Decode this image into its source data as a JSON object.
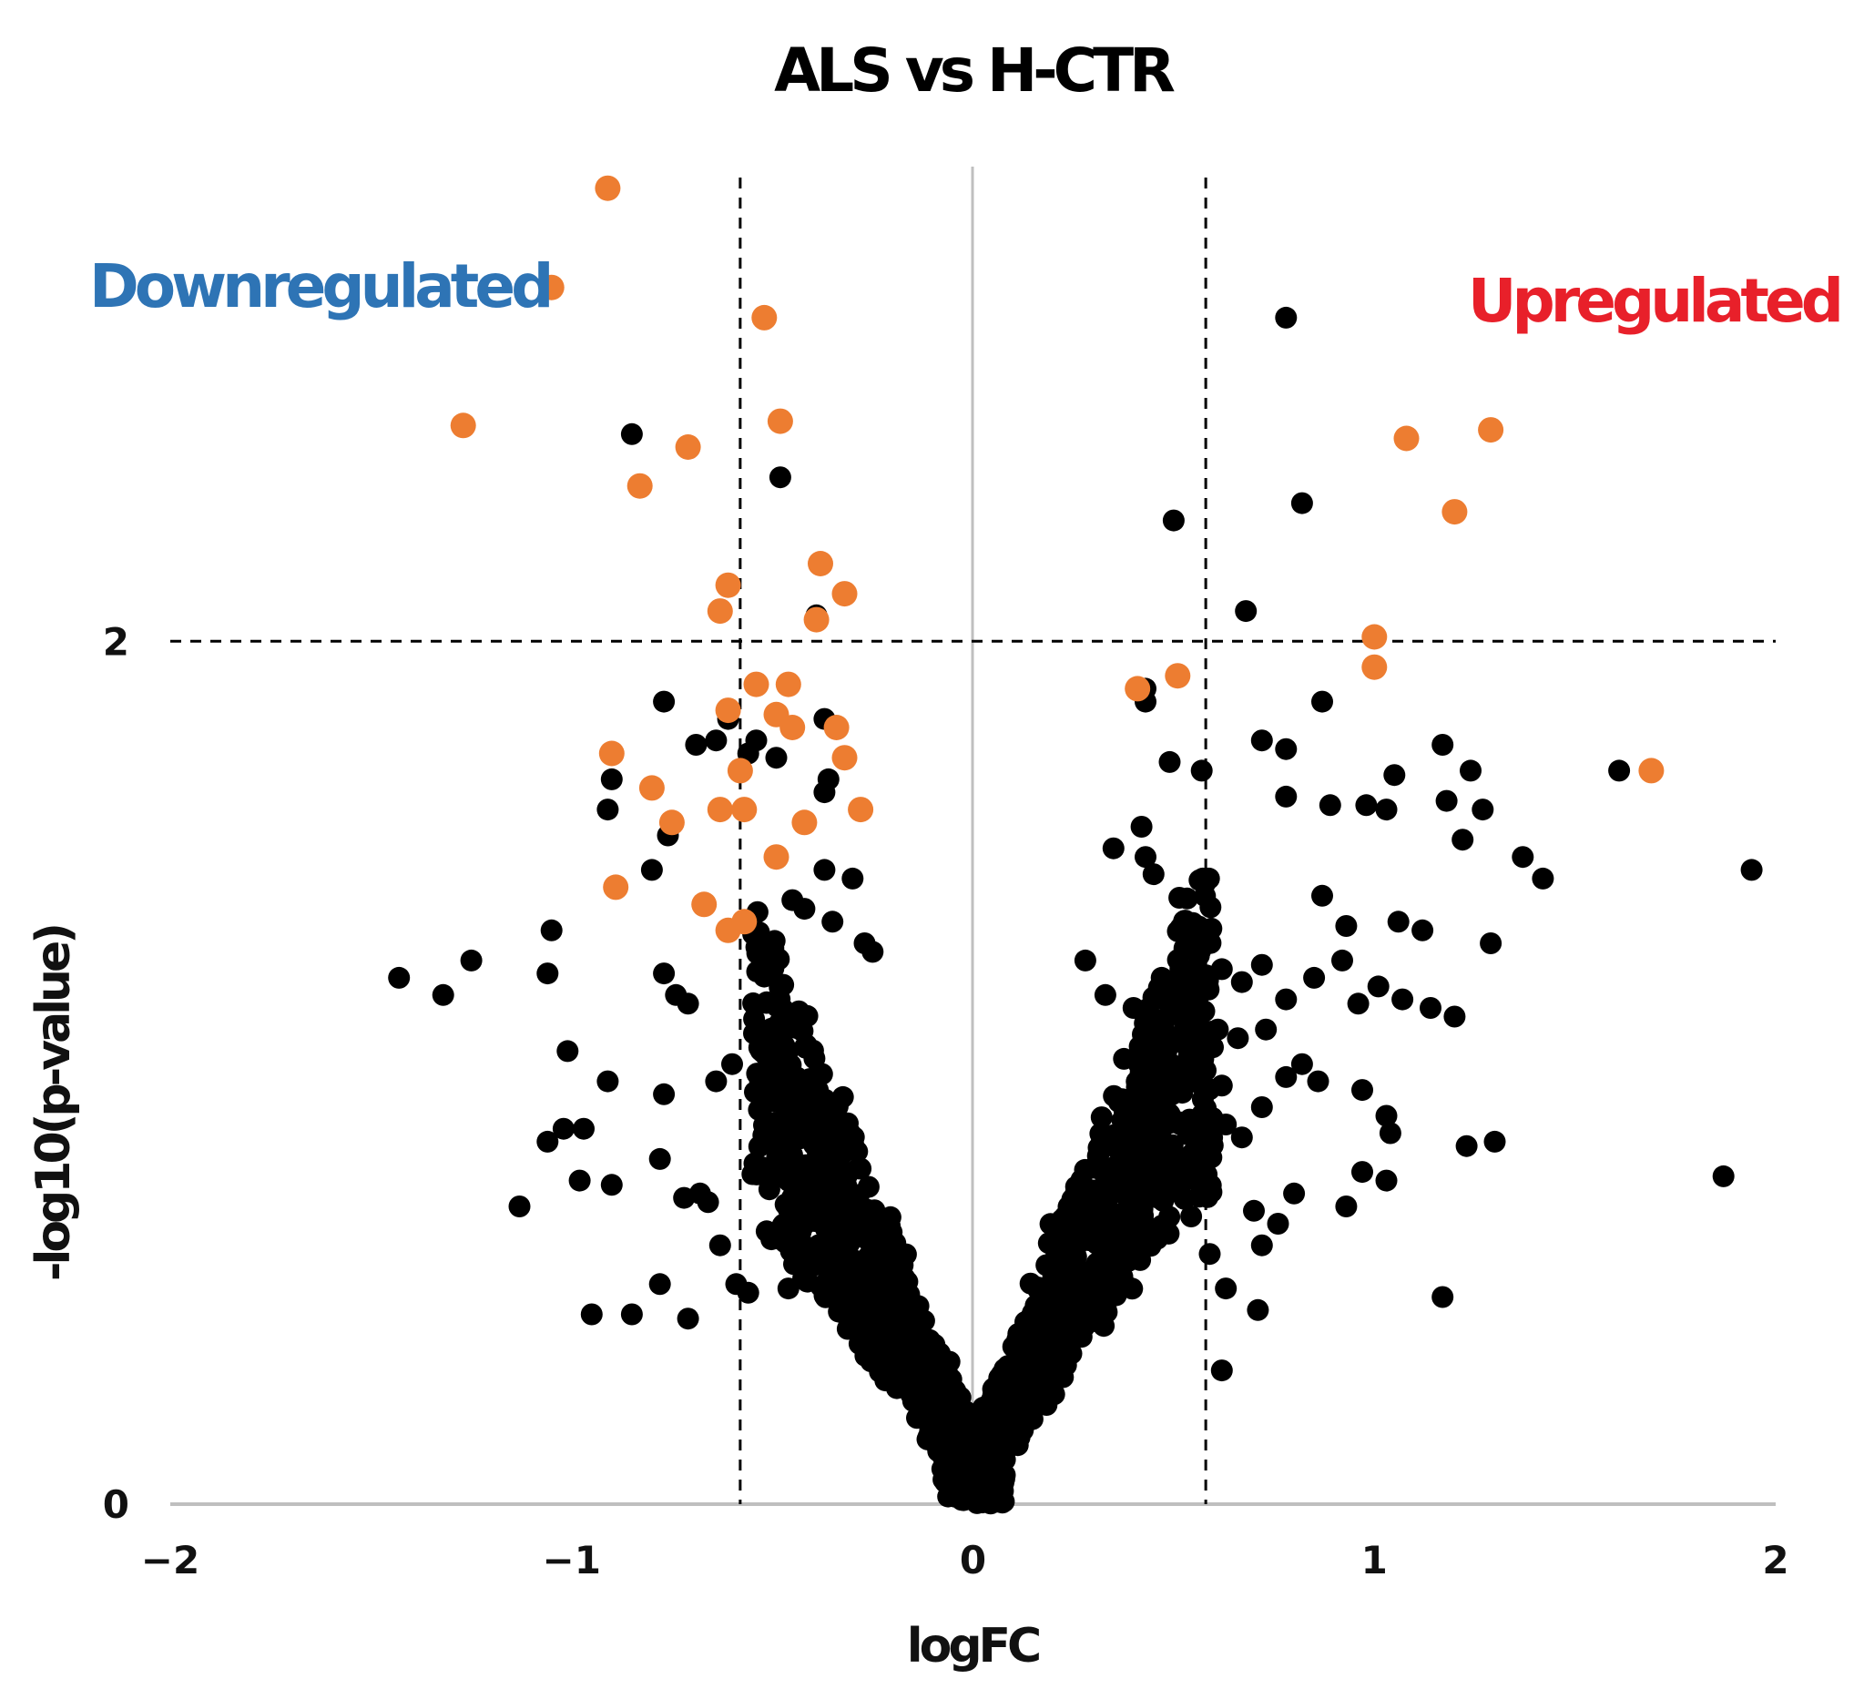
{
  "chart_data": {
    "type": "scatter",
    "title": "ALS vs H-CTR",
    "xlabel": "logFC",
    "ylabel": "-log10(p-value)",
    "xlim": [
      -2,
      2
    ],
    "ylim": [
      0,
      3.1
    ],
    "xticks": [
      "−2",
      "−1",
      "0",
      "1",
      "2"
    ],
    "xtick_values": [
      -2,
      -1,
      0,
      1,
      2
    ],
    "yticks": [
      "0",
      "2"
    ],
    "ytick_values": [
      0,
      2
    ],
    "thresholds": {
      "logfc": [
        -0.58,
        0.58
      ],
      "neglog10p": 2.0
    },
    "grid": false,
    "annotations": [
      {
        "text": "Downregulated",
        "color": "#2e74b5",
        "position": "top-left"
      },
      {
        "text": "Upregulated",
        "color": "#e8202a",
        "position": "top-right"
      }
    ],
    "colors": {
      "highlight": "#ed7d31",
      "background": "#000000",
      "threshold_line": "#000000",
      "axis_line": "#bfbfbf",
      "downregulated_text": "#2e74b5",
      "upregulated_text": "#e8202a"
    },
    "series": [
      {
        "color": "#ed7d31",
        "points": [
          [
            -0.91,
            3.05
          ],
          [
            -1.05,
            2.82
          ],
          [
            -0.52,
            2.75
          ],
          [
            -1.27,
            2.5
          ],
          [
            -0.48,
            2.51
          ],
          [
            -0.71,
            2.45
          ],
          [
            -0.83,
            2.36
          ],
          [
            -0.38,
            2.18
          ],
          [
            -0.32,
            2.11
          ],
          [
            -0.61,
            2.13
          ],
          [
            -0.63,
            2.07
          ],
          [
            -0.39,
            2.05
          ],
          [
            -0.54,
            1.9
          ],
          [
            -0.46,
            1.9
          ],
          [
            -0.61,
            1.84
          ],
          [
            -0.49,
            1.83
          ],
          [
            -0.45,
            1.8
          ],
          [
            -0.34,
            1.8
          ],
          [
            -0.9,
            1.74
          ],
          [
            -0.58,
            1.7
          ],
          [
            -0.32,
            1.73
          ],
          [
            -0.8,
            1.66
          ],
          [
            -0.63,
            1.61
          ],
          [
            -0.57,
            1.61
          ],
          [
            -0.28,
            1.61
          ],
          [
            -0.75,
            1.58
          ],
          [
            -0.42,
            1.58
          ],
          [
            -0.49,
            1.5
          ],
          [
            -0.89,
            1.43
          ],
          [
            -0.67,
            1.39
          ],
          [
            -0.61,
            1.33
          ],
          [
            -0.57,
            1.35
          ],
          [
            1.08,
            2.47
          ],
          [
            1.29,
            2.49
          ],
          [
            1.2,
            2.3
          ],
          [
            1.0,
            2.01
          ],
          [
            1.0,
            1.94
          ],
          [
            0.41,
            1.89
          ],
          [
            0.51,
            1.92
          ],
          [
            1.69,
            1.7
          ]
        ]
      },
      {
        "color": "#000000",
        "points": [
          [
            0.78,
            2.75
          ],
          [
            -0.85,
            2.48
          ],
          [
            -0.48,
            2.38
          ],
          [
            0.82,
            2.32
          ],
          [
            0.5,
            2.28
          ],
          [
            0.68,
            2.07
          ],
          [
            -0.39,
            2.06
          ],
          [
            -0.77,
            1.86
          ],
          [
            0.43,
            1.89
          ],
          [
            0.43,
            1.86
          ],
          [
            0.87,
            1.86
          ],
          [
            -0.37,
            1.82
          ],
          [
            -0.61,
            1.82
          ],
          [
            -0.64,
            1.77
          ],
          [
            -0.69,
            1.76
          ],
          [
            -0.54,
            1.77
          ],
          [
            -0.56,
            1.74
          ],
          [
            -0.49,
            1.73
          ],
          [
            0.49,
            1.72
          ],
          [
            0.57,
            1.7
          ],
          [
            0.72,
            1.77
          ],
          [
            0.78,
            1.75
          ],
          [
            1.17,
            1.76
          ],
          [
            1.24,
            1.7
          ],
          [
            1.61,
            1.7
          ],
          [
            1.05,
            1.69
          ],
          [
            -0.9,
            1.68
          ],
          [
            -0.91,
            1.61
          ],
          [
            -0.76,
            1.55
          ],
          [
            -0.36,
            1.68
          ],
          [
            -0.37,
            1.65
          ],
          [
            0.78,
            1.64
          ],
          [
            0.89,
            1.62
          ],
          [
            0.98,
            1.62
          ],
          [
            1.03,
            1.61
          ],
          [
            1.18,
            1.63
          ],
          [
            1.27,
            1.61
          ],
          [
            1.22,
            1.54
          ],
          [
            1.37,
            1.5
          ],
          [
            1.42,
            1.45
          ],
          [
            1.94,
            1.47
          ],
          [
            0.42,
            1.57
          ],
          [
            0.35,
            1.52
          ],
          [
            0.43,
            1.5
          ],
          [
            0.45,
            1.46
          ],
          [
            -0.8,
            1.47
          ],
          [
            -0.45,
            1.4
          ],
          [
            -0.37,
            1.47
          ],
          [
            -0.3,
            1.45
          ],
          [
            -0.42,
            1.38
          ],
          [
            -0.35,
            1.35
          ],
          [
            -0.27,
            1.3
          ],
          [
            -0.25,
            1.28
          ],
          [
            -1.05,
            1.33
          ],
          [
            -1.06,
            1.23
          ],
          [
            -1.25,
            1.26
          ],
          [
            -1.43,
            1.22
          ],
          [
            -1.32,
            1.18
          ],
          [
            -0.77,
            1.23
          ],
          [
            -0.74,
            1.18
          ],
          [
            -0.71,
            1.16
          ],
          [
            -1.01,
            1.05
          ],
          [
            -0.91,
            0.98
          ],
          [
            -0.77,
            0.95
          ],
          [
            -0.64,
            0.98
          ],
          [
            -0.6,
            1.02
          ],
          [
            -1.02,
            0.87
          ],
          [
            -1.06,
            0.84
          ],
          [
            -0.97,
            0.87
          ],
          [
            -0.78,
            0.8
          ],
          [
            -0.98,
            0.75
          ],
          [
            -0.9,
            0.74
          ],
          [
            -1.13,
            0.69
          ],
          [
            -0.72,
            0.71
          ],
          [
            -0.68,
            0.72
          ],
          [
            -0.66,
            0.7
          ],
          [
            -0.63,
            0.6
          ],
          [
            -0.78,
            0.51
          ],
          [
            -0.59,
            0.51
          ],
          [
            -0.56,
            0.49
          ],
          [
            -0.46,
            0.5
          ],
          [
            -0.95,
            0.44
          ],
          [
            -0.85,
            0.44
          ],
          [
            -0.71,
            0.43
          ],
          [
            0.28,
            1.26
          ],
          [
            0.33,
            1.18
          ],
          [
            0.4,
            1.15
          ],
          [
            0.47,
            1.22
          ],
          [
            0.54,
            1.2
          ],
          [
            0.62,
            1.24
          ],
          [
            0.67,
            1.21
          ],
          [
            0.72,
            1.25
          ],
          [
            0.78,
            1.17
          ],
          [
            0.85,
            1.22
          ],
          [
            0.92,
            1.26
          ],
          [
            0.96,
            1.16
          ],
          [
            1.01,
            1.2
          ],
          [
            1.07,
            1.17
          ],
          [
            1.14,
            1.15
          ],
          [
            1.2,
            1.13
          ],
          [
            1.29,
            1.3
          ],
          [
            0.93,
            1.34
          ],
          [
            0.87,
            1.41
          ],
          [
            1.06,
            1.35
          ],
          [
            1.12,
            1.33
          ],
          [
            0.97,
            0.96
          ],
          [
            1.03,
            0.9
          ],
          [
            1.04,
            0.86
          ],
          [
            1.23,
            0.83
          ],
          [
            1.3,
            0.84
          ],
          [
            0.97,
            0.77
          ],
          [
            1.03,
            0.75
          ],
          [
            0.93,
            0.69
          ],
          [
            1.87,
            0.76
          ],
          [
            1.17,
            0.48
          ],
          [
            0.63,
            0.5
          ],
          [
            0.71,
            0.45
          ],
          [
            0.62,
            0.31
          ],
          [
            0.59,
            0.58
          ],
          [
            0.7,
            0.68
          ],
          [
            0.76,
            0.65
          ],
          [
            0.8,
            0.72
          ],
          [
            0.72,
            0.6
          ],
          [
            0.63,
            0.88
          ],
          [
            0.67,
            0.85
          ],
          [
            0.57,
            1.05
          ],
          [
            0.61,
            1.1
          ],
          [
            0.55,
            1.2
          ],
          [
            0.62,
            0.97
          ],
          [
            0.72,
            0.92
          ],
          [
            0.86,
            0.98
          ],
          [
            0.78,
            0.99
          ],
          [
            0.82,
            1.02
          ],
          [
            0.73,
            1.1
          ],
          [
            0.66,
            1.08
          ]
        ]
      }
    ]
  }
}
